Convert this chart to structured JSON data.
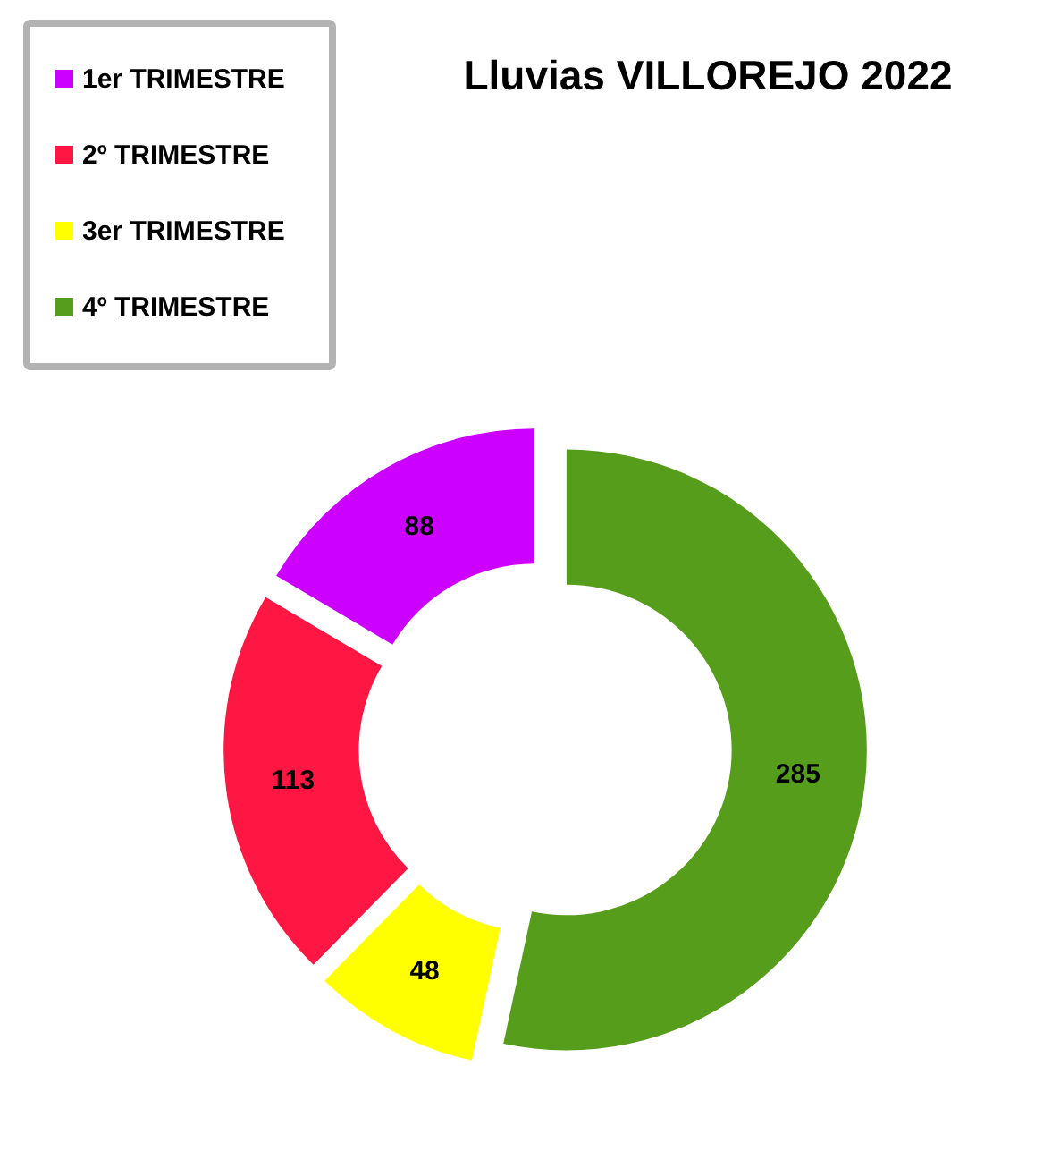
{
  "chart_data": {
    "type": "donut",
    "title": "Lluvias VILLOREJO 2022",
    "categories": [
      "1er TRIMESTRE",
      "2º TRIMESTRE",
      "3er TRIMESTRE",
      "4º TRIMESTRE"
    ],
    "values": [
      88,
      113,
      48,
      285
    ],
    "colors": [
      "#cc00ff",
      "#ff1744",
      "#ffff00",
      "#579d1c"
    ],
    "data_labels": true,
    "legend": "top left"
  }
}
